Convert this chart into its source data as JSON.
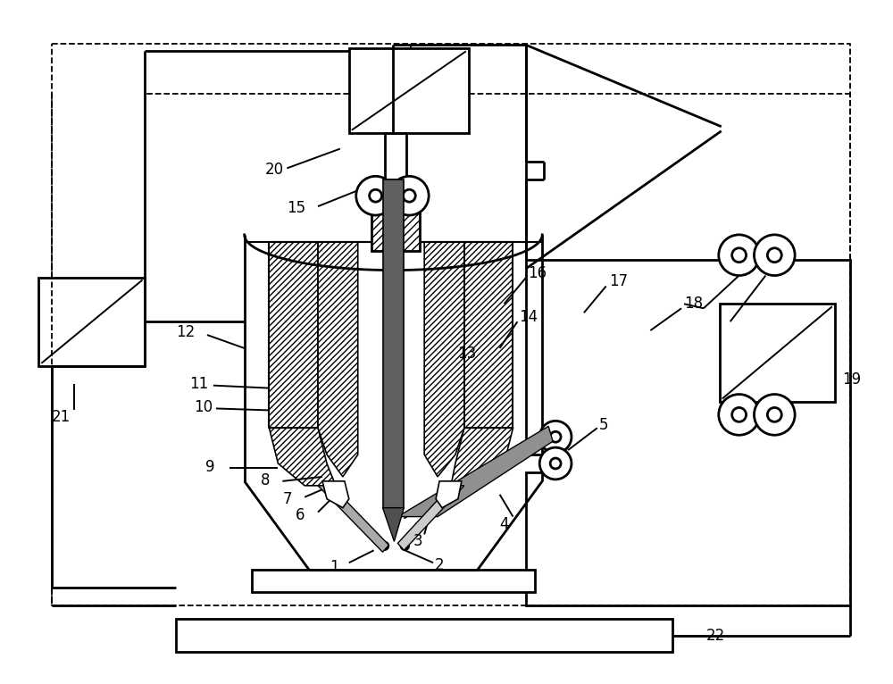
{
  "bg_color": "#ffffff",
  "lw_thick": 2.0,
  "lw_thin": 1.4,
  "lw_dash": 1.3,
  "label_fs": 12,
  "figsize": [
    10.0,
    7.66
  ]
}
